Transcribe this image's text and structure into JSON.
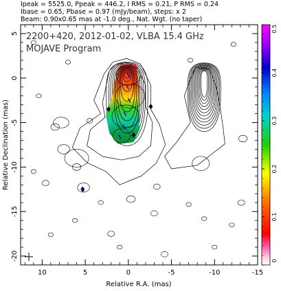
{
  "header": {
    "line1": "Ipeak = 5525.0, Ppeak = 446.2, I RMS = 0.21, P RMS = 0.24",
    "line2": "Ibase = 0.65, Pbase = 0.97 (mJy/beam), steps: x 2",
    "line3": "Beam: 0.90x0.65 mas at -1.0 deg., Nat. Wgt. (no taper)"
  },
  "plot": {
    "title": "2200+420, 2012-01-02, VLBA 15.4 GHz",
    "subtitle": "MOJAVE Program"
  },
  "chart_data": {
    "type": "heatmap",
    "source": "2200+420",
    "date": "2012-01-02",
    "xlabel": "Relative R.A. (mas)",
    "ylabel": "Relative Declination (mas)",
    "xlim": [
      12.5,
      -15
    ],
    "ylim": [
      -21,
      6
    ],
    "x_ticks": [
      10,
      5,
      0,
      -5,
      -10,
      -15
    ],
    "y_ticks": [
      5,
      0,
      -5,
      -10,
      -15,
      -20
    ],
    "colorbar": {
      "label_ticks": [
        "0",
        "0.1",
        "0.2",
        "0.3",
        "0.4",
        "0.5"
      ],
      "range": [
        0,
        0.5
      ]
    },
    "panels": [
      {
        "name": "total_intensity_with_fractional_polarization",
        "contour_center": [
          0,
          0
        ],
        "jet_components": [
          {
            "x": 0.0,
            "y": 0.3,
            "r": 1.4
          },
          {
            "x": -0.2,
            "y": -2.0,
            "r": 1.7
          },
          {
            "x": 0.3,
            "y": -4.3,
            "r": 1.6
          },
          {
            "x": 0.8,
            "y": -6.5,
            "r": 1.0
          }
        ]
      },
      {
        "name": "polarized_intensity",
        "contour_center": [
          -8.8,
          -0.6
        ]
      }
    ]
  }
}
